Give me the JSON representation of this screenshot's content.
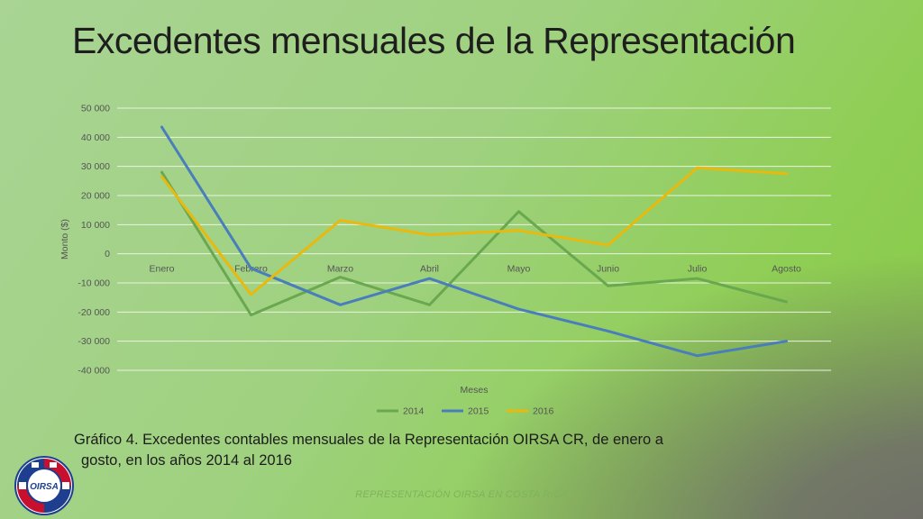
{
  "slide": {
    "title": "Excedentes mensuales de la Representación",
    "caption_line1": "Gráfico 4. Excedentes contables mensuales de la Representación OIRSA CR, de enero a",
    "caption_line2": "gosto, en los años 2014 al 2016",
    "footer": "REPRESENTACIÓN OIRSA EN COSTA RICA",
    "logo_text": "OIRSA",
    "logo_icon": "oirsa-logo-icon"
  },
  "chart_data": {
    "type": "line",
    "xlabel": "Meses",
    "ylabel": "Monto ($)",
    "categories": [
      "Enero",
      "Febrero",
      "Marzo",
      "Abril",
      "Mayo",
      "Junio",
      "Julio",
      "Agosto"
    ],
    "ylim": [
      -40000,
      50000
    ],
    "yticks": [
      50000,
      40000,
      30000,
      20000,
      10000,
      0,
      -10000,
      -20000,
      -30000,
      -40000
    ],
    "ytick_labels": [
      "50 000",
      "40 000",
      "30 000",
      "20 000",
      "10 000",
      "0",
      "-10 000",
      "-20 000",
      "-30 000",
      "-40 000"
    ],
    "grid": true,
    "legend_position": "bottom",
    "series": [
      {
        "name": "2014",
        "color": "#6aa84f",
        "values": [
          28000,
          -21000,
          -8000,
          -17500,
          14500,
          -11000,
          -8500,
          -16500
        ]
      },
      {
        "name": "2015",
        "color": "#4a7ebb",
        "values": [
          43500,
          -5000,
          -17500,
          -8500,
          -19000,
          -26500,
          -35000,
          -30000
        ]
      },
      {
        "name": "2016",
        "color": "#e8b90e",
        "values": [
          26500,
          -14000,
          11500,
          6500,
          8000,
          3000,
          29500,
          27500
        ]
      }
    ]
  }
}
